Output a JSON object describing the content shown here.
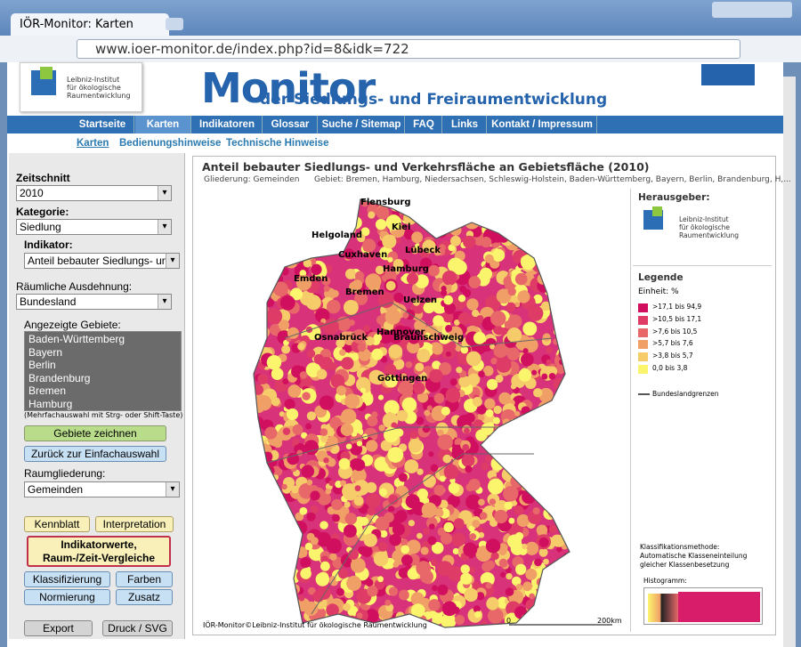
{
  "browser": {
    "tab_title": "IÖR-Monitor: Karten",
    "url": "www.ioer-monitor.de/index.php?id=8&idk=722"
  },
  "header": {
    "logo_lines": [
      "Leibniz-Institut",
      "für ökologische",
      "Raumentwicklung"
    ],
    "title": "Monitor",
    "subtitle": "der Siedlungs- und Freiraumentwicklung"
  },
  "nav": [
    "Startseite",
    "Karten",
    "Indikatoren",
    "Glossar",
    "Suche / Sitemap",
    "FAQ",
    "Links",
    "Kontakt / Impressum"
  ],
  "subnav": [
    "Karten",
    "Bedienungshinweise",
    "Technische Hinweise"
  ],
  "sidebar": {
    "zeitschnitt_label": "Zeitschnitt",
    "zeitschnitt": "2010",
    "kategorie_label": "Kategorie:",
    "kategorie": "Siedlung",
    "indikator_label": "Indikator:",
    "indikator": "Anteil bebauter Siedlungs- un",
    "ausdehnung_label": "Räumliche Ausdehnung:",
    "ausdehnung": "Bundesland",
    "gebiete_label": "Angezeigte Gebiete:",
    "gebiete": [
      "Baden-Württemberg",
      "Bayern",
      "Berlin",
      "Brandenburg",
      "Bremen",
      "Hamburg"
    ],
    "hint": "(Mehrfachauswahl mit Strg- oder Shift-Taste)",
    "draw_button": "Gebiete zeichnen",
    "back_button": "Zurück zur Einfachauswahl",
    "raumgliederung_label": "Raumgliederung:",
    "raumgliederung": "Gemeinden",
    "kennblatt": "Kennblatt",
    "interpretation": "Interpretation",
    "indikatorwerte": [
      "Indikatorwerte,",
      "Raum-/Zeit-Vergleiche"
    ],
    "klassifizierung": "Klassifizierung",
    "farben": "Farben",
    "normierung": "Normierung",
    "zusatz": "Zusatz",
    "export": "Export",
    "druck": "Druck / SVG"
  },
  "map": {
    "title": "Anteil bebauter Siedlungs- und Verkehrsfläche an Gebietsfläche (2010)",
    "gliederung": "Gliederung: Gemeinden",
    "gebiet": "Gebiet: Bremen, Hamburg, Niedersachsen, Schleswig-Holstein, Baden-Württemberg, Bayern, Berlin, Brandenburg, H,...",
    "cities": [
      "Flensburg",
      "Kiel",
      "Helgoland",
      "Lübeck",
      "Cuxhaven",
      "Hamburg",
      "Emden",
      "Bremen",
      "Uelzen",
      "Hannover",
      "Osnabrück",
      "Braunschweig",
      "Göttingen"
    ],
    "copyright": "IÖR-Monitor©Leibniz-Institut für ökologische Raumentwicklung",
    "scale_start": "0",
    "scale_end": "200km"
  },
  "legend": {
    "herausgeber": "Herausgeber:",
    "logo_lines": [
      "Leibniz-Institut",
      "für ökologische",
      "Raumentwicklung"
    ],
    "title": "Legende",
    "einheit": "Einheit: %",
    "classes": [
      {
        "label": ">17,1 bis 94,9",
        "color": "#d0105f"
      },
      {
        "label": ">10,5 bis 17,1",
        "color": "#de3c66"
      },
      {
        "label": ">7,6 bis 10,5",
        "color": "#e8686a"
      },
      {
        "label": ">5,7 bis 7,6",
        "color": "#f0a066"
      },
      {
        "label": ">3,8 bis 5,7",
        "color": "#f6cc6a"
      },
      {
        "label": "0,0 bis 3,8",
        "color": "#fbf56e"
      }
    ],
    "boundary": "Bundeslandgrenzen",
    "method": [
      "Klassifikationsmethode:",
      "Automatische Klasseneinteilung",
      "gleicher Klassenbesetzung"
    ],
    "histogramm": "Histogramm:"
  }
}
